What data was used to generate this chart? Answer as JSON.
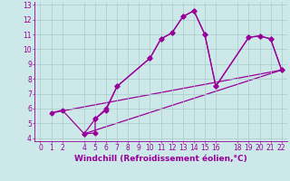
{
  "xlabel": "Windchill (Refroidissement éolien,°C)",
  "background_color": "#cce8e8",
  "line_color": "#990099",
  "grid_color": "#aacccc",
  "xlim": [
    -0.5,
    22.5
  ],
  "ylim": [
    3.8,
    13.2
  ],
  "xticks": [
    0,
    1,
    2,
    4,
    5,
    6,
    7,
    8,
    9,
    10,
    11,
    12,
    13,
    14,
    15,
    16,
    18,
    19,
    20,
    21,
    22
  ],
  "xtick_labels": [
    "0",
    "1",
    "2",
    "4",
    "5",
    "6",
    "7",
    "8",
    "9",
    "10",
    "11",
    "12",
    "13",
    "14",
    "15",
    "16",
    "18",
    "19",
    "20",
    "21",
    "22"
  ],
  "yticks": [
    4,
    5,
    6,
    7,
    8,
    9,
    10,
    11,
    12,
    13
  ],
  "line1_x": [
    1,
    2,
    4,
    5,
    5,
    6,
    7,
    10,
    11,
    12,
    13,
    14,
    15,
    16,
    19,
    20,
    21,
    22
  ],
  "line1_y": [
    5.7,
    5.9,
    4.3,
    4.35,
    5.3,
    5.9,
    7.5,
    9.4,
    10.7,
    11.1,
    12.2,
    12.6,
    11.0,
    7.5,
    10.8,
    10.9,
    10.7,
    8.6
  ],
  "line2_x": [
    1,
    22
  ],
  "line2_y": [
    5.7,
    8.6
  ],
  "line3_x": [
    4,
    5,
    6,
    7,
    10,
    11,
    12,
    13,
    14,
    15,
    16,
    19,
    20,
    21,
    22
  ],
  "line3_y": [
    4.3,
    5.3,
    6.0,
    7.5,
    9.4,
    10.7,
    11.1,
    12.2,
    12.6,
    11.0,
    7.5,
    10.8,
    10.9,
    10.7,
    8.6
  ],
  "line4_x": [
    4,
    22
  ],
  "line4_y": [
    4.3,
    8.6
  ],
  "marker": "D",
  "markersize": 2.5,
  "linewidth": 0.9,
  "tick_fontsize": 5.5,
  "xlabel_fontsize": 6.5
}
